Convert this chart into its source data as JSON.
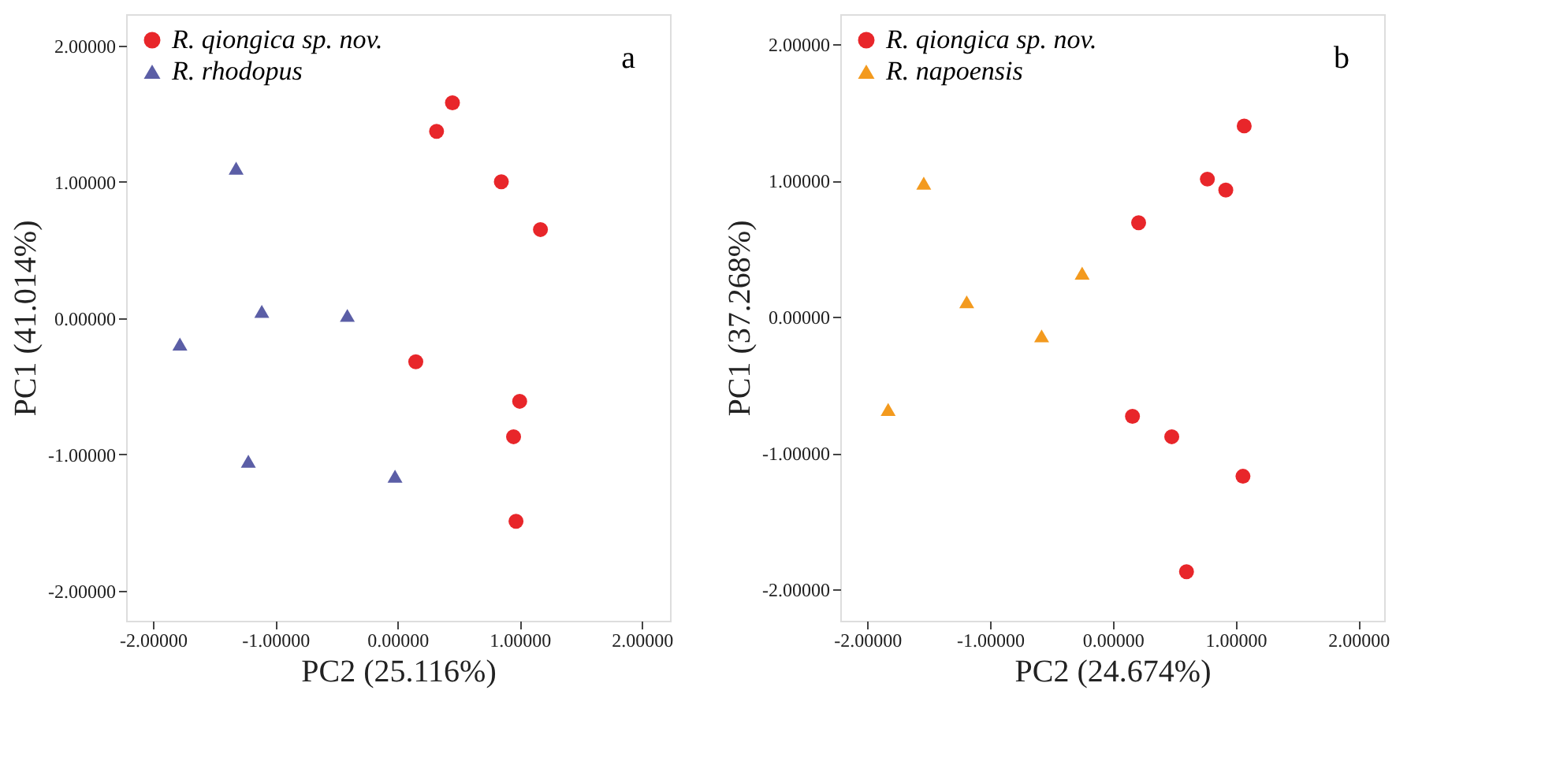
{
  "chart_data": [
    {
      "type": "scatter",
      "xlabel": "PC2 (25.116%)",
      "ylabel": "PC1 (41.014%)",
      "annotations": [
        "a"
      ],
      "legend": "top left",
      "grid": false,
      "xlim": [
        -2.22,
        2.23
      ],
      "ylim": [
        -2.22,
        2.23
      ],
      "xticks": [
        {
          "value": -2,
          "label": "-2.00000"
        },
        {
          "value": -1,
          "label": "-1.00000"
        },
        {
          "value": 0,
          "label": "0.00000"
        },
        {
          "value": 1,
          "label": "1.00000"
        },
        {
          "value": 2,
          "label": "2.00000"
        }
      ],
      "yticks": [
        {
          "value": -2,
          "label": "-2.00000"
        },
        {
          "value": -1,
          "label": "-1.00000"
        },
        {
          "value": 0,
          "label": "0.00000"
        },
        {
          "value": 1,
          "label": "1.00000"
        },
        {
          "value": 2,
          "label": "2.00000"
        }
      ],
      "series": [
        {
          "name": "R. qiongica sp. nov.",
          "color": "#e8262a",
          "marker": "circle",
          "x": [
            0.45,
            0.32,
            0.85,
            1.17,
            0.15,
            1.0,
            0.95,
            0.97
          ],
          "values": [
            1.58,
            1.37,
            1.0,
            0.65,
            -0.32,
            -0.61,
            -0.87,
            -1.49
          ]
        },
        {
          "name": "R. rhodopus",
          "color": "#5b5ea6",
          "marker": "triangle",
          "x": [
            -1.32,
            -1.11,
            -0.41,
            -1.78,
            -1.22,
            -0.02
          ],
          "values": [
            1.1,
            0.05,
            0.02,
            -0.19,
            -1.05,
            -1.16
          ]
        }
      ]
    },
    {
      "type": "scatter",
      "xlabel": "PC2 (24.674%)",
      "ylabel": "PC1 (37.268%)",
      "annotations": [
        "b"
      ],
      "legend": "top left",
      "grid": false,
      "xlim": [
        -2.22,
        2.21
      ],
      "ylim": [
        -2.23,
        2.22
      ],
      "xticks": [
        {
          "value": -2,
          "label": "-2.00000"
        },
        {
          "value": -1,
          "label": "-1.00000"
        },
        {
          "value": 0,
          "label": "0.00000"
        },
        {
          "value": 1,
          "label": "1.00000"
        },
        {
          "value": 2,
          "label": "2.00000"
        }
      ],
      "yticks": [
        {
          "value": -2,
          "label": "-2.00000"
        },
        {
          "value": -1,
          "label": "-1.00000"
        },
        {
          "value": 0,
          "label": "0.00000"
        },
        {
          "value": 1,
          "label": "1.00000"
        },
        {
          "value": 2,
          "label": "2.00000"
        }
      ],
      "series": [
        {
          "name": "R. qiongica sp. nov.",
          "color": "#e8262a",
          "marker": "circle",
          "x": [
            1.07,
            0.77,
            0.92,
            0.21,
            0.16,
            0.48,
            1.06,
            0.6
          ],
          "values": [
            1.4,
            1.01,
            0.93,
            0.69,
            -0.73,
            -0.88,
            -1.17,
            -1.87
          ]
        },
        {
          "name": "R. napoensis",
          "color": "#f39a1e",
          "marker": "triangle",
          "x": [
            -1.54,
            -0.25,
            -1.19,
            -0.58,
            -1.83
          ],
          "values": [
            0.98,
            0.32,
            0.11,
            -0.14,
            -0.68
          ]
        }
      ]
    }
  ]
}
